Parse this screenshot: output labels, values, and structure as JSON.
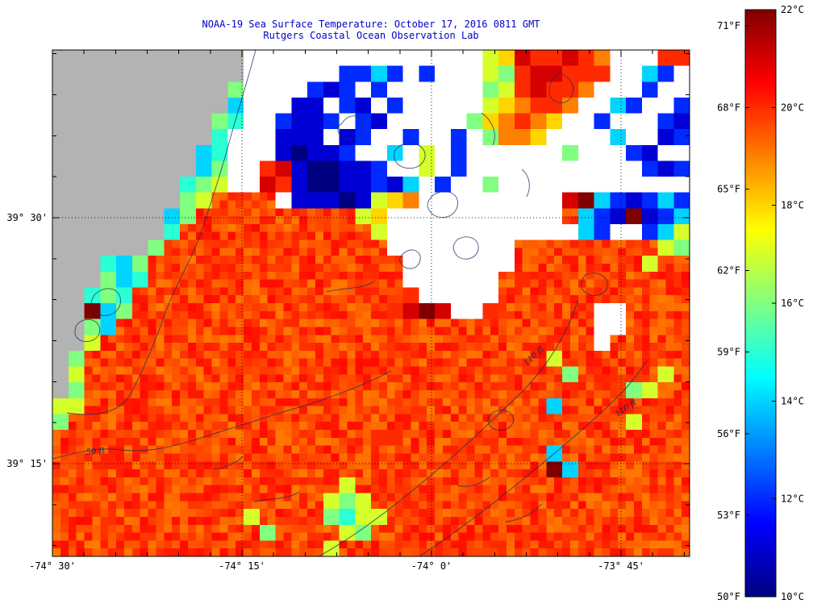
{
  "colors": {
    "land": "#b3b3b3",
    "cloud": "#ffffff",
    "title_text": "#0000cc",
    "axis_text": "#000000",
    "contour_line": "#1b2a5e",
    "frame": "#000000"
  },
  "colorbar": {
    "fahrenheit_labels": [
      "71°F",
      "68°F",
      "65°F",
      "62°F",
      "59°F",
      "56°F",
      "53°F",
      "50°F"
    ],
    "celsius_labels": [
      "22°C",
      "20°C",
      "18°C",
      "16°C",
      "14°C",
      "12°C",
      "10°C"
    ],
    "min_c": 10,
    "max_c": 22
  },
  "chart_data": {
    "type": "heatmap",
    "title": "NOAA-19 Sea Surface Temperature:  October 17, 2016 0811 GMT",
    "subtitle": "Rutgers Coastal Ocean Observation Lab",
    "colormap": "jet",
    "value_range_c": [
      10,
      22
    ],
    "value_range_f": [
      50,
      71.6
    ],
    "x_ticks": [
      "-74° 30'",
      "-74° 15'",
      "-74° 0'",
      "-73° 45'"
    ],
    "y_ticks": [
      "39° 30'",
      "39° 15'"
    ],
    "contour_labels": [
      "50 ft",
      "110 ft",
      "110 ft"
    ],
    "base_sst_c": 19.6,
    "grid": {
      "cols": 40,
      "rows": 32,
      "cell_encoding": {
        "L": "land",
        ".": "cloud / no data (white)",
        " ": "ambient shelf SST ~19.1-20.4 C",
        "a": 10,
        "b": 11,
        "c": 12,
        "d": 13,
        "e": 14,
        "f": 15,
        "g": 16,
        "h": 17,
        "i": 18,
        "j": 19,
        "k": 20,
        "l": 21,
        "m": 22
      },
      "rows_data": [
        "LLLLLLLLLLLL...............hilkklkj...kk",
        "LLLLLLLLLLLL......ccec.c...hgkllkkk..ec.",
        "LLLLLLLLLLLg....cbc.c......ghklkkj...c..",
        "LLLLLLLLLLLe...bb.cb.c.....hijkkj..ec..c",
        "LLLLLLLLLLgf..cbbc.cb.....gijkji..c...cb",
        "LLLLLLLLLLf...bbb.bc..c..c.gjji....e..bc",
        "LLLLLLLLLef...babbc..e.h.c......g...cb..",
        "LLLLLLLLLeg..klbaabbc..h.c...........cbc",
        "LLLLLLLLfgh..lkbaabbcbe.c..g............",
        "LLLLLLLLgh    .bbbabhij.........lmecbcec",
        "LLLLLLLeg          hi........... ecbmbce",
        "LLLLLLLf            h............ec..ceh",
        "LLLLLLg              ........         hg",
        "LLLfeg                .......        h",
        "LLLgef                ...... k",
        "LLfgf                 k.....",
        "LLmeg                klml..k      ..",
        "LLge                              ..",
        "LLh                               .",
        "Lg                             h",
        "Lh                              g     h",
        "Lg                                  gh",
        "hh                             e",
        "g                                   h",
        "                    kk",
        "                               e",
        "                               me",
        "                  h",
        "                 hgh",
        "            h    gfhh",
        "             g    hg",
        "                 h"
      ]
    }
  }
}
